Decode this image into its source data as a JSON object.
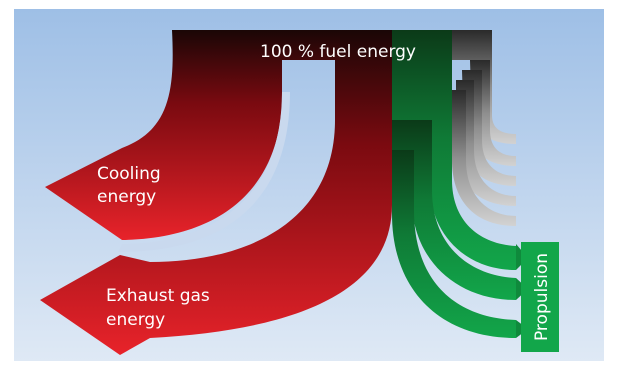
{
  "diagram": {
    "title": "100 % fuel energy",
    "flows": {
      "cooling": {
        "label_line1": "Cooling",
        "label_line2": "energy",
        "color": "#b8141c"
      },
      "exhaust": {
        "label_line1": "Exhaust gas",
        "label_line2": "energy",
        "color": "#e8232a"
      },
      "losses": {
        "color": "#9e9e9e"
      },
      "propulsion": {
        "label": "Propulsion",
        "color": "#12a64a"
      }
    },
    "colors": {
      "background_top": "#9ebfe6",
      "background_bottom": "#dfe9f5",
      "dark_top": "#1a0606",
      "green_dark": "#0b3a18"
    }
  }
}
